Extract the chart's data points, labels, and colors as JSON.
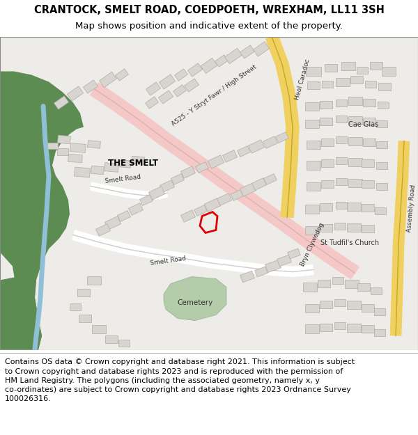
{
  "title": "CRANTOCK, SMELT ROAD, COEDPOETH, WREXHAM, LL11 3SH",
  "subtitle": "Map shows position and indicative extent of the property.",
  "footer": "Contains OS data © Crown copyright and database right 2021. This information is subject to Crown copyright and database rights 2023 and is reproduced with the permission of HM Land Registry. The polygons (including the associated geometry, namely x, y co-ordinates) are subject to Crown copyright and database rights 2023 Ordnance Survey 100026316.",
  "map_bg": "#eeece8",
  "green_dark": "#5d8c52",
  "green_light": "#b5ccaa",
  "blue_river": "#90c0d8",
  "road_pink_fill": "#f5c8c8",
  "road_yellow_fill": "#f0d060",
  "road_white_fill": "#ffffff",
  "road_outline": "#cccccc",
  "building_fill": "#d8d4cf",
  "building_edge": "#b0aba5",
  "red_plot": "#dd0000",
  "title_fontsize": 10.5,
  "subtitle_fontsize": 9.5,
  "footer_fontsize": 8.0,
  "title_bold": true
}
